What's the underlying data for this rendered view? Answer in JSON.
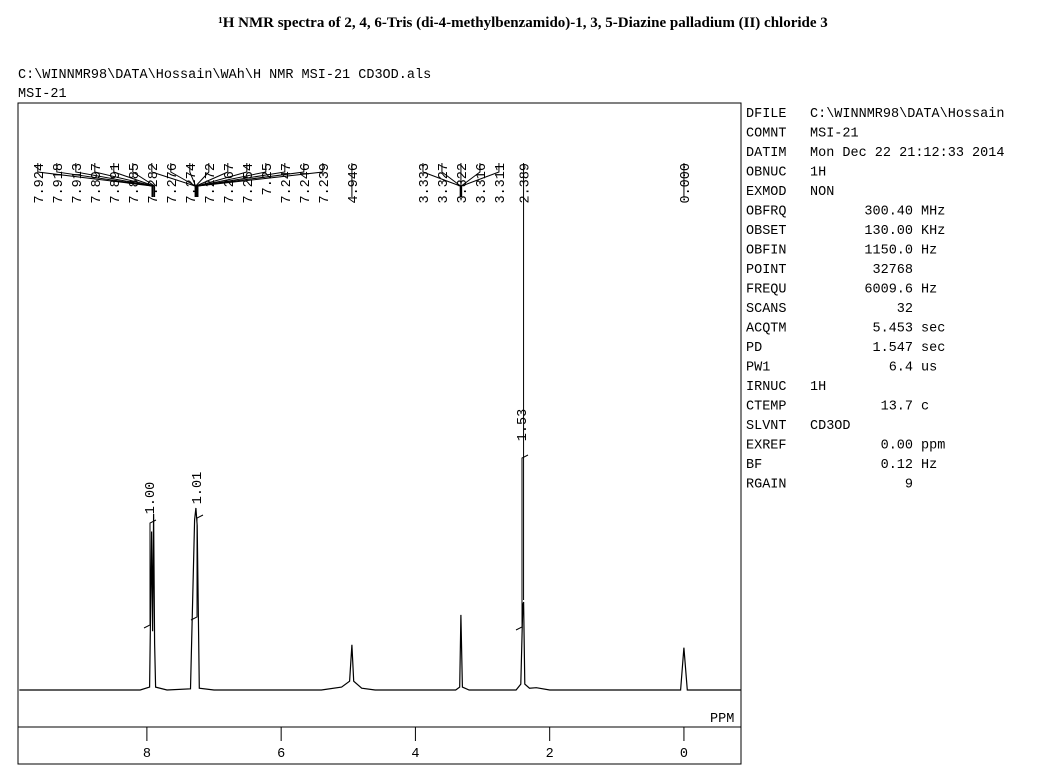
{
  "chart_data": {
    "type": "nmr",
    "title": "¹H NMR spectra of 2, 4, 6-Tris (di-4-methylbenzamido)-1, 3, 5-Diazine palladium (II) chloride 3",
    "file_path": "C:\\WINNMR98\\DATA\\Hossain\\WAh\\H NMR MSI-21 CD3OD.als",
    "sample": "MSI-21",
    "x_label": "PPM",
    "xlim": [
      9.92,
      -0.85
    ],
    "xticks": [
      8,
      6,
      4,
      2,
      0
    ],
    "ylim": [
      0,
      100
    ],
    "color": "#000000",
    "x": [
      9.9,
      8.1,
      7.96,
      7.93,
      7.915,
      7.9,
      7.885,
      7.87,
      7.7,
      7.35,
      7.29,
      7.27,
      7.25,
      7.22,
      7.0,
      5.4,
      5.1,
      4.98,
      4.946,
      4.92,
      4.8,
      4.6,
      3.4,
      3.34,
      3.322,
      3.3,
      3.2,
      2.5,
      2.43,
      2.4,
      2.389,
      2.37,
      2.3,
      2.2,
      2.0,
      0.05,
      0.0,
      -0.05,
      -0.85
    ],
    "values": [
      0,
      0,
      0.5,
      27,
      10,
      30,
      8,
      0.5,
      0,
      0.2,
      29,
      31,
      28,
      0.3,
      0,
      0,
      0.5,
      1.5,
      7.7,
      1.5,
      0.3,
      0,
      0,
      0.5,
      12.8,
      0.5,
      0,
      0,
      1,
      14.5,
      15,
      1,
      0.3,
      0.4,
      0,
      0,
      7.2,
      0,
      0
    ],
    "peaks": [
      7.924,
      7.918,
      7.913,
      7.897,
      7.891,
      7.885,
      7.282,
      7.276,
      7.274,
      7.272,
      7.267,
      7.254,
      7.25,
      7.247,
      7.246,
      7.239,
      4.946,
      3.333,
      3.327,
      3.322,
      3.316,
      3.311,
      2.389,
      {
        "value": 0,
        "label": "0.000"
      }
    ],
    "integrals": [
      {
        "value": 1,
        "label": "1.00"
      },
      {
        "value": 1.01,
        "label": "1.01"
      },
      {
        "value": 1.53,
        "label": "1.53"
      }
    ],
    "parameters": [
      {
        "key": "DFILE",
        "text": "C:\\WINNMR98\\DATA\\Hossain"
      },
      {
        "key": "COMNT",
        "text": "MSI-21"
      },
      {
        "key": "DATIM",
        "text": "Mon Dec 22 21:12:33 2014"
      },
      {
        "key": "OBNUC",
        "text": "1H"
      },
      {
        "key": "EXMOD",
        "text": "NON"
      },
      {
        "key": "OBFRQ",
        "value": "300.40",
        "unit": "MHz"
      },
      {
        "key": "OBSET",
        "value": "130.00",
        "unit": "KHz"
      },
      {
        "key": "OBFIN",
        "value": "1150.0",
        "unit": "Hz"
      },
      {
        "key": "POINT",
        "value": "32768"
      },
      {
        "key": "FREQU",
        "value": "6009.6",
        "unit": "Hz"
      },
      {
        "key": "SCANS",
        "value": "32"
      },
      {
        "key": "ACQTM",
        "value": "5.453",
        "unit": "sec"
      },
      {
        "key": "PD",
        "value": "1.547",
        "unit": "sec"
      },
      {
        "key": "PW1",
        "value": "6.4",
        "unit": "us"
      },
      {
        "key": "IRNUC",
        "text": "1H"
      },
      {
        "key": "CTEMP",
        "value": "13.7",
        "unit": "c"
      },
      {
        "key": "SLVNT",
        "text": "CD3OD"
      },
      {
        "key": "EXREF",
        "value": "0.00",
        "unit": "ppm"
      },
      {
        "key": "BF",
        "value": "0.12",
        "unit": "Hz"
      },
      {
        "key": "RGAIN",
        "value": "9"
      }
    ]
  }
}
